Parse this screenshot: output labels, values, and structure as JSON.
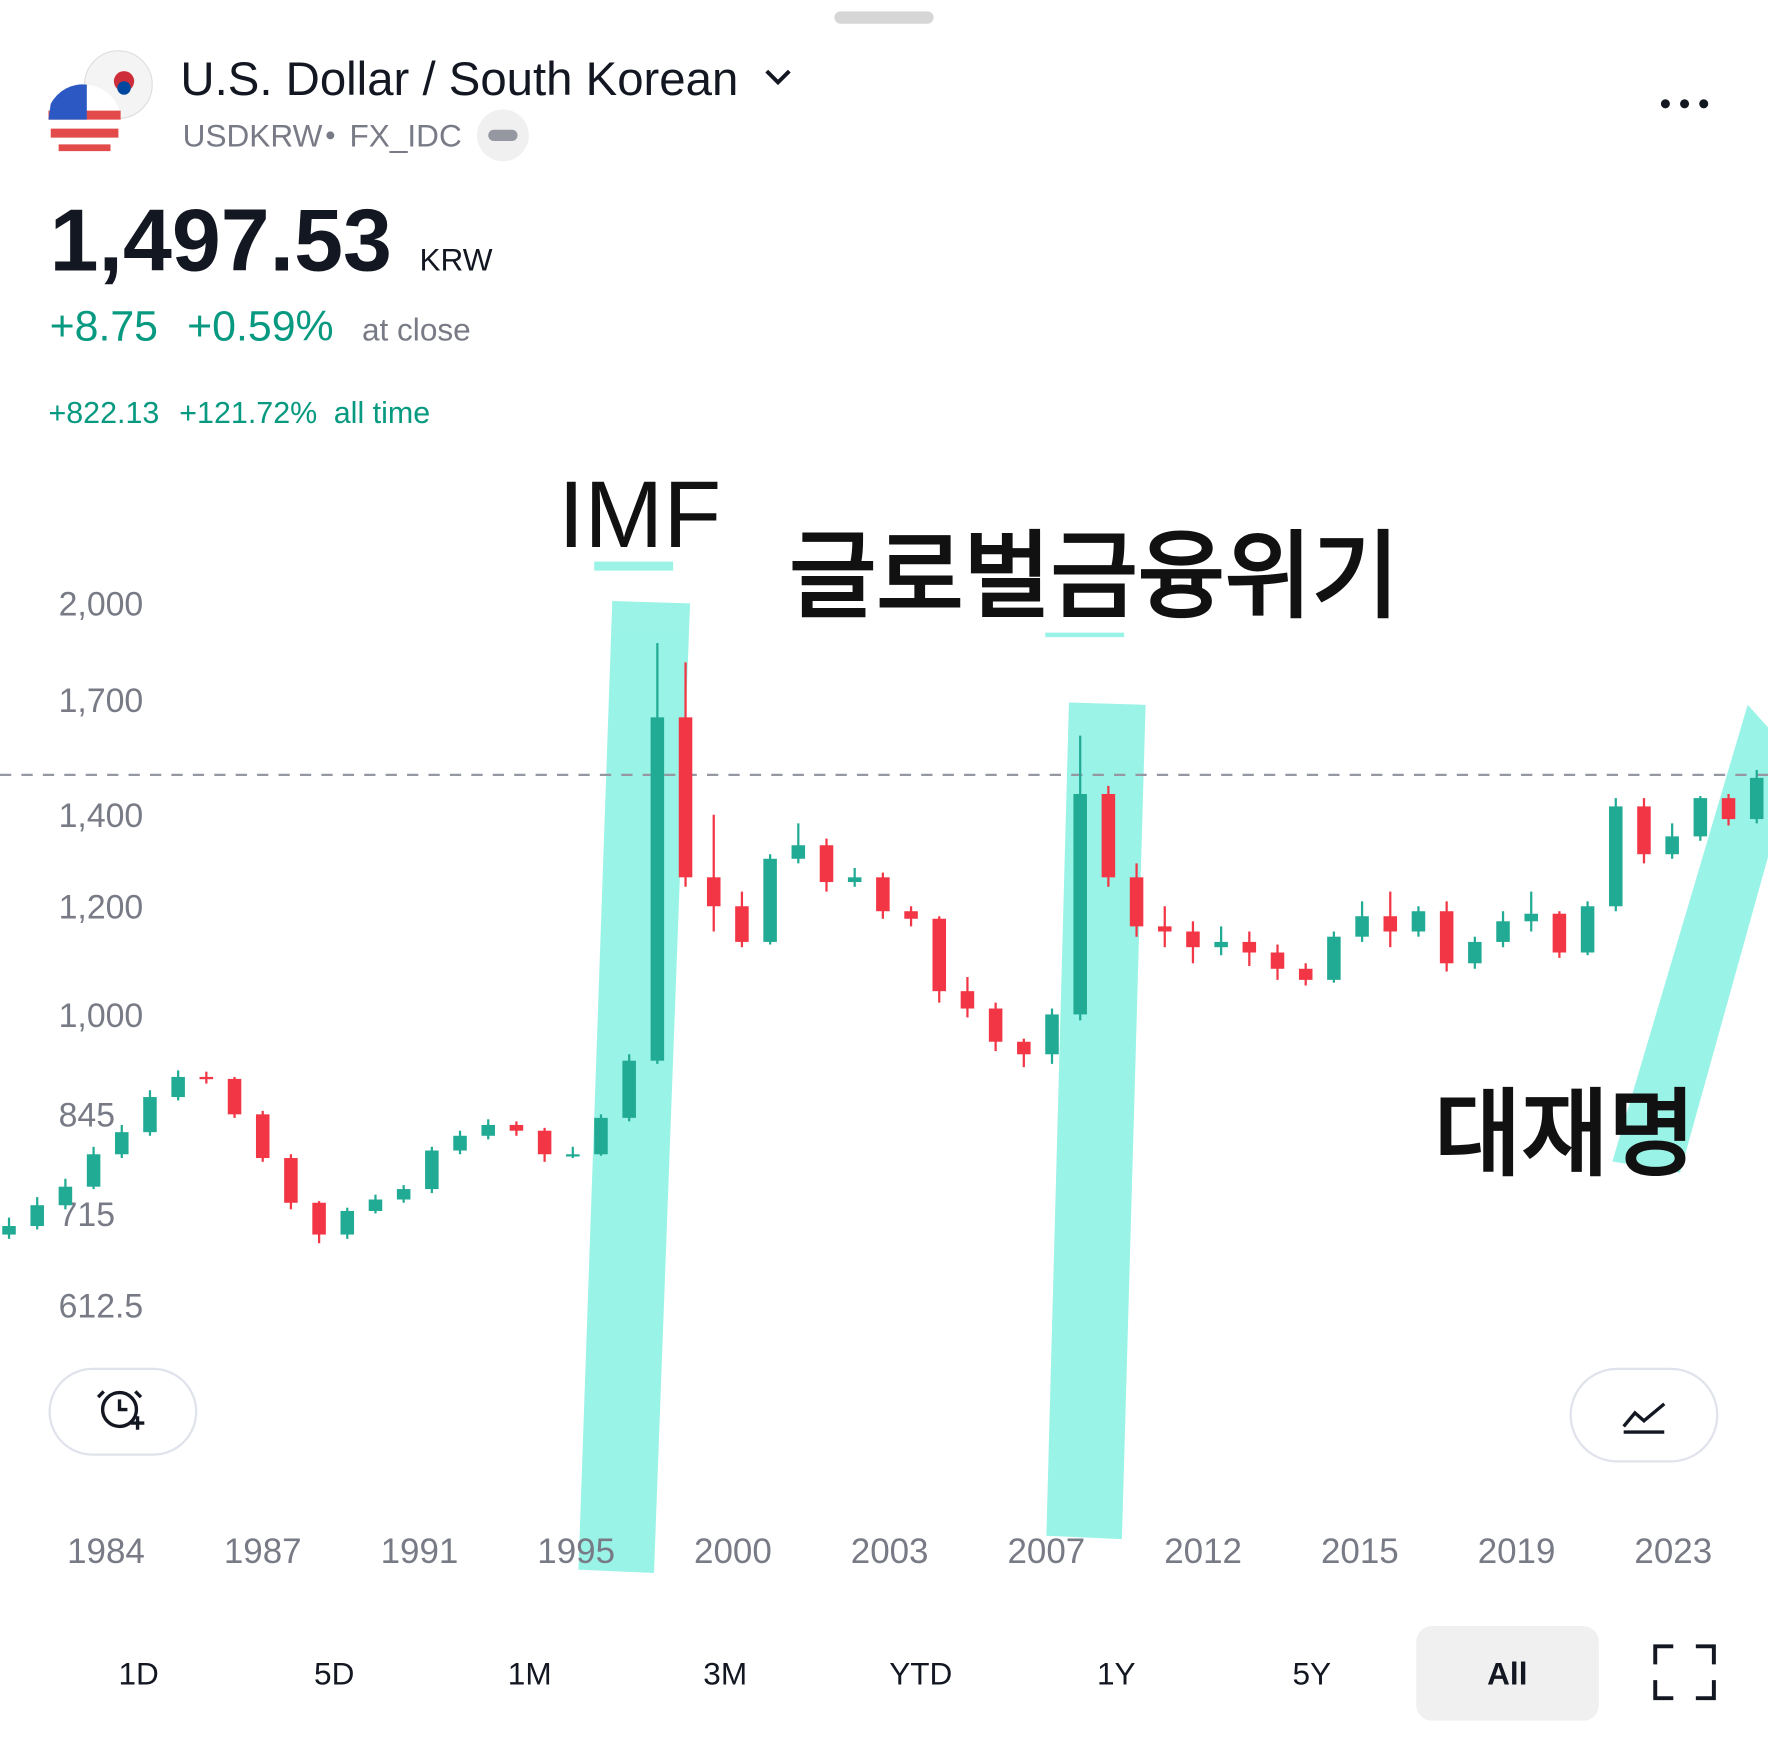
{
  "header": {
    "title": "U.S. Dollar / South Korean",
    "symbol": "USDKRW",
    "exchange": "FX_IDC"
  },
  "quote": {
    "price": {
      "value": 1497.53,
      "label": "1,497.53"
    },
    "currency": "KRW",
    "change": "+8.75",
    "change_pct": "+0.59%",
    "status": "at close",
    "all_time_change": "+822.13",
    "all_time_pct": "+121.72%",
    "all_time_label": "all time"
  },
  "chart_data": {
    "type": "candlestick",
    "log_scale": true,
    "up_color": "#22ab94",
    "down_color": "#f23645",
    "ylim": [
      565,
      2220
    ],
    "yticks": [
      {
        "value": 2000,
        "label": "2,000"
      },
      {
        "value": 1700,
        "label": "1,700"
      },
      {
        "value": 1400,
        "label": "1,400"
      },
      {
        "value": 1200,
        "label": "1,200"
      },
      {
        "value": 1000,
        "label": "1,000"
      },
      845,
      715,
      612.5
    ],
    "x_labels": [
      "1984",
      "1987",
      "1991",
      "1995",
      "2000",
      "2003",
      "2007",
      "2012",
      "2015",
      "2019",
      "2023"
    ],
    "open": [
      690,
      700,
      725,
      748,
      790,
      820,
      870,
      900,
      897,
      845,
      785,
      728,
      690,
      718,
      732,
      745,
      795,
      815,
      830,
      822,
      790,
      790,
      840,
      925,
      1650,
      1260,
      1200,
      1130,
      1300,
      1330,
      1250,
      1260,
      1190,
      1175,
      1040,
      1010,
      955,
      935,
      1000,
      1450,
      1260,
      1160,
      1150,
      1120,
      1130,
      1110,
      1080,
      1060,
      1140,
      1180,
      1150,
      1190,
      1090,
      1130,
      1170,
      1185,
      1110,
      1200,
      1420,
      1310,
      1350,
      1440,
      1390
    ],
    "high": [
      710,
      735,
      758,
      800,
      830,
      880,
      910,
      908,
      900,
      850,
      790,
      730,
      722,
      738,
      750,
      800,
      822,
      838,
      835,
      826,
      800,
      845,
      935,
      1870,
      1810,
      1400,
      1230,
      1310,
      1380,
      1345,
      1280,
      1270,
      1200,
      1180,
      1065,
      1020,
      960,
      1010,
      1600,
      1470,
      1290,
      1200,
      1170,
      1160,
      1150,
      1125,
      1090,
      1150,
      1210,
      1230,
      1200,
      1210,
      1140,
      1190,
      1230,
      1190,
      1210,
      1440,
      1440,
      1380,
      1445,
      1450,
      1510
    ],
    "low": [
      685,
      696,
      720,
      745,
      785,
      815,
      865,
      890,
      840,
      780,
      720,
      680,
      685,
      715,
      728,
      740,
      790,
      810,
      815,
      780,
      785,
      788,
      835,
      920,
      1240,
      1150,
      1120,
      1125,
      1290,
      1230,
      1240,
      1175,
      1160,
      1020,
      995,
      940,
      915,
      920,
      990,
      1240,
      1140,
      1120,
      1090,
      1105,
      1085,
      1060,
      1050,
      1055,
      1130,
      1120,
      1140,
      1075,
      1080,
      1120,
      1150,
      1100,
      1105,
      1190,
      1290,
      1300,
      1340,
      1375,
      1380
    ],
    "close": [
      700,
      725,
      748,
      790,
      820,
      870,
      900,
      897,
      845,
      785,
      728,
      690,
      718,
      732,
      745,
      795,
      815,
      830,
      822,
      790,
      790,
      840,
      925,
      1650,
      1260,
      1200,
      1130,
      1300,
      1330,
      1250,
      1260,
      1190,
      1175,
      1040,
      1010,
      955,
      935,
      1000,
      1450,
      1260,
      1160,
      1150,
      1120,
      1130,
      1110,
      1080,
      1060,
      1140,
      1180,
      1150,
      1190,
      1090,
      1130,
      1170,
      1185,
      1110,
      1200,
      1420,
      1310,
      1350,
      1440,
      1390,
      1490
    ]
  },
  "annotations": [
    "IMF",
    "글로벌금융위기",
    "대재명"
  ],
  "range_buttons": [
    "1D",
    "5D",
    "1M",
    "3M",
    "YTD",
    "1Y",
    "5Y",
    "All"
  ]
}
